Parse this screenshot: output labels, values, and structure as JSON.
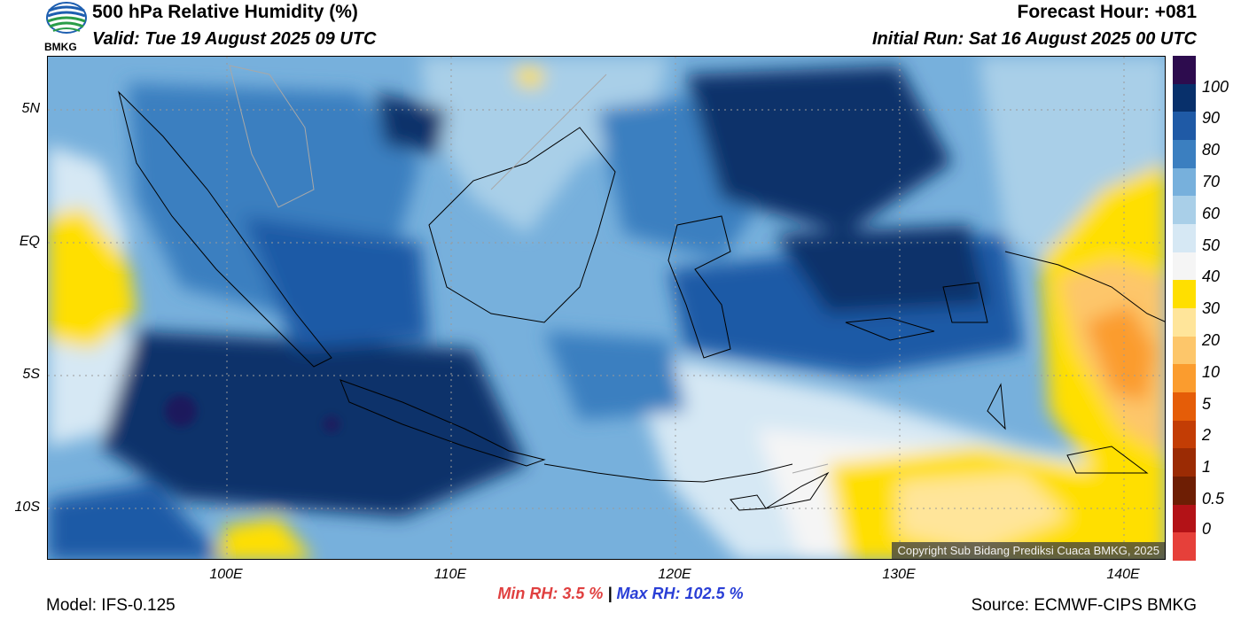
{
  "header": {
    "title": "500 hPa Relative Humidity (%)",
    "valid": "Valid: Tue 19 August 2025 09 UTC",
    "forecast_hour": "Forecast Hour: +081",
    "initial_run": "Initial Run: Sat 16 August 2025 00 UTC",
    "logo_text": "BMKG"
  },
  "axes": {
    "lat_labels": [
      "5N",
      "EQ",
      "5S",
      "10S"
    ],
    "lon_labels": [
      "100E",
      "110E",
      "120E",
      "130E",
      "140E"
    ]
  },
  "colorbar": {
    "labels": [
      "100",
      "90",
      "80",
      "70",
      "60",
      "50",
      "40",
      "30",
      "20",
      "10",
      "5",
      "2",
      "1",
      "0.5",
      "0"
    ],
    "colors": [
      "#2d0c4e",
      "#08306b",
      "#1f5aa6",
      "#3b7fc0",
      "#77b0dc",
      "#a9cfe8",
      "#d6e8f4",
      "#f5f5f5",
      "#ffdf00",
      "#ffe59a",
      "#fdc66a",
      "#fb9c2e",
      "#e55d08",
      "#c33d05",
      "#9b2b04",
      "#6e1e04",
      "#b31217",
      "#e6403a"
    ]
  },
  "footer": {
    "min_rh_label": "Min RH:",
    "min_rh_value": "3.5 %",
    "separator": "|",
    "max_rh_label": "Max RH:",
    "max_rh_value": "102.5 %",
    "model": "Model: IFS-0.125",
    "source": "Source: ECMWF-CIPS BMKG",
    "copyright": "Copyright Sub Bidang Prediksi Cuaca BMKG, 2025"
  }
}
